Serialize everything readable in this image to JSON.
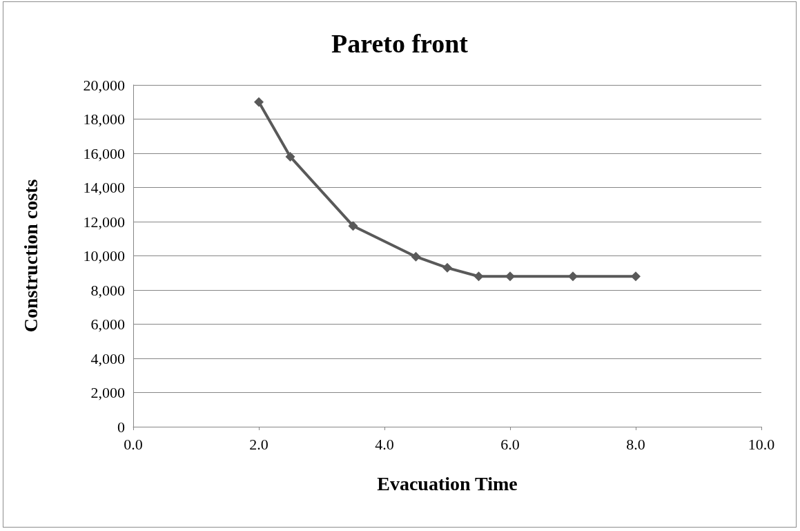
{
  "chart_data": {
    "type": "line",
    "title": "Pareto front",
    "xlabel": "Evacuation Time",
    "ylabel": "Construction costs",
    "x": [
      2.0,
      2.5,
      3.5,
      4.5,
      5.0,
      5.5,
      6.0,
      7.0,
      8.0
    ],
    "series": [
      {
        "color": "#595959",
        "values": [
          19000,
          15800,
          11750,
          9950,
          9300,
          8800,
          8800,
          8800,
          8800
        ]
      }
    ],
    "xlim": [
      0,
      10
    ],
    "xticks": [
      {
        "value": 0,
        "label": "0.0"
      },
      {
        "value": 2,
        "label": "2.0"
      },
      {
        "value": 4,
        "label": "4.0"
      },
      {
        "value": 6,
        "label": "6.0"
      },
      {
        "value": 8,
        "label": "8.0"
      },
      {
        "value": 10,
        "label": "10.0"
      }
    ],
    "ylim": [
      0,
      20000
    ],
    "yticks": [
      {
        "value": 0,
        "label": "0"
      },
      {
        "value": 2000,
        "label": "2,000"
      },
      {
        "value": 4000,
        "label": "4,000"
      },
      {
        "value": 6000,
        "label": "6,000"
      },
      {
        "value": 8000,
        "label": "8,000"
      },
      {
        "value": 10000,
        "label": "10,000"
      },
      {
        "value": 12000,
        "label": "12,000"
      },
      {
        "value": 14000,
        "label": "14,000"
      },
      {
        "value": 16000,
        "label": "16,000"
      },
      {
        "value": 18000,
        "label": "18,000"
      },
      {
        "value": 20000,
        "label": "20,000"
      }
    ],
    "grid": "y",
    "marker": "diamond",
    "line_style": "solid"
  }
}
